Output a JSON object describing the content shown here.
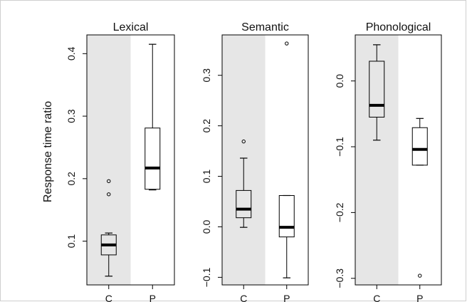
{
  "chart_data": {
    "type": "boxplot",
    "ylabel": "Response time ratio",
    "categories": [
      "C",
      "P"
    ],
    "shade_color": "#e6e6e6",
    "panels": [
      {
        "title": "Lexical",
        "ylim": [
          0.03,
          0.43
        ],
        "yticks": [
          0.1,
          0.2,
          0.3,
          0.4
        ],
        "ytick_labels": [
          "0.1",
          "0.2",
          "0.3",
          "0.4"
        ],
        "boxes": [
          {
            "category": "C",
            "whisker_low": 0.044,
            "q1": 0.078,
            "median": 0.094,
            "q3": 0.11,
            "whisker_high": 0.113,
            "outliers": [
              0.175,
              0.196
            ]
          },
          {
            "category": "P",
            "whisker_low": 0.182,
            "q1": 0.183,
            "median": 0.217,
            "q3": 0.281,
            "whisker_high": 0.415,
            "outliers": []
          }
        ]
      },
      {
        "title": "Semantic",
        "ylim": [
          -0.115,
          0.38
        ],
        "yticks": [
          -0.1,
          0.0,
          0.1,
          0.2,
          0.3
        ],
        "ytick_labels": [
          "-0.1",
          "0.0",
          "0.1",
          "0.2",
          "0.3"
        ],
        "boxes": [
          {
            "category": "C",
            "whisker_low": -0.001,
            "q1": 0.018,
            "median": 0.035,
            "q3": 0.072,
            "whisker_high": 0.136,
            "outliers": [
              0.169
            ]
          },
          {
            "category": "P",
            "whisker_low": -0.101,
            "q1": -0.02,
            "median": -0.001,
            "q3": 0.062,
            "whisker_high": 0.062,
            "outliers": [
              0.363
            ]
          }
        ]
      },
      {
        "title": "Phonological",
        "ylim": [
          -0.31,
          0.07
        ],
        "yticks": [
          -0.3,
          -0.2,
          -0.1,
          0.0
        ],
        "ytick_labels": [
          "-0.3",
          "-0.2",
          "-0.1",
          "0.0"
        ],
        "boxes": [
          {
            "category": "C",
            "whisker_low": -0.09,
            "q1": -0.055,
            "median": -0.037,
            "q3": 0.03,
            "whisker_high": 0.055,
            "outliers": []
          },
          {
            "category": "P",
            "whisker_low": -0.128,
            "q1": -0.128,
            "median": -0.104,
            "q3": -0.071,
            "whisker_high": -0.057,
            "outliers": [
              -0.296
            ]
          }
        ]
      }
    ]
  }
}
